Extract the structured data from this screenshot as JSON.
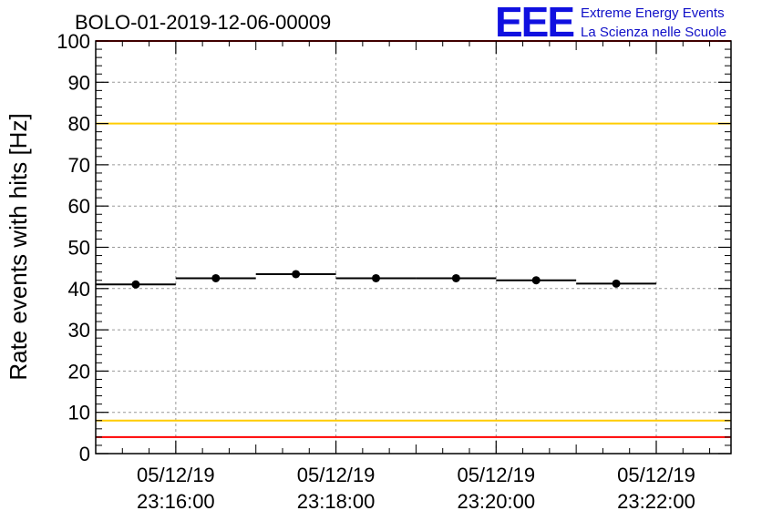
{
  "chart_data": {
    "type": "scatter",
    "title": "BOLO-01-2019-12-06-00009",
    "ylabel": "Rate events with hits [Hz]",
    "xlabel": "",
    "ylim": [
      0,
      100
    ],
    "yticks": [
      0,
      10,
      20,
      30,
      40,
      50,
      60,
      70,
      80,
      90,
      100
    ],
    "xlim": [
      "05/12/19 23:15:00",
      "05/12/19 23:22:56"
    ],
    "xticks": [
      {
        "date": "05/12/19",
        "time": "23:16:00"
      },
      {
        "date": "05/12/19",
        "time": "23:18:00"
      },
      {
        "date": "05/12/19",
        "time": "23:20:00"
      },
      {
        "date": "05/12/19",
        "time": "23:22:00"
      }
    ],
    "grid": true,
    "points": [
      {
        "x_start": "23:15:00",
        "x_end": "23:16:00",
        "x_center": "23:15:30",
        "y": 41
      },
      {
        "x_start": "23:16:00",
        "x_end": "23:17:00",
        "x_center": "23:16:30",
        "y": 42.5
      },
      {
        "x_start": "23:17:00",
        "x_end": "23:18:00",
        "x_center": "23:17:30",
        "y": 43.5
      },
      {
        "x_start": "23:18:00",
        "x_end": "23:19:00",
        "x_center": "23:18:30",
        "y": 42.5
      },
      {
        "x_start": "23:19:00",
        "x_end": "23:20:00",
        "x_center": "23:19:30",
        "y": 42.5
      },
      {
        "x_start": "23:20:00",
        "x_end": "23:21:00",
        "x_center": "23:20:30",
        "y": 42
      },
      {
        "x_start": "23:21:00",
        "x_end": "23:22:00",
        "x_center": "23:21:30",
        "y": 41.2
      }
    ],
    "reference_lines": [
      {
        "y": 100,
        "color": "#ff0000"
      },
      {
        "y": 80,
        "color": "#ffcc00"
      },
      {
        "y": 8,
        "color": "#ffcc00"
      },
      {
        "y": 4,
        "color": "#ff0000"
      }
    ]
  },
  "logo": {
    "mark": "EEE",
    "line1": "Extreme Energy Events",
    "line2": "La Scienza nelle Scuole",
    "color": "#1010e0"
  }
}
